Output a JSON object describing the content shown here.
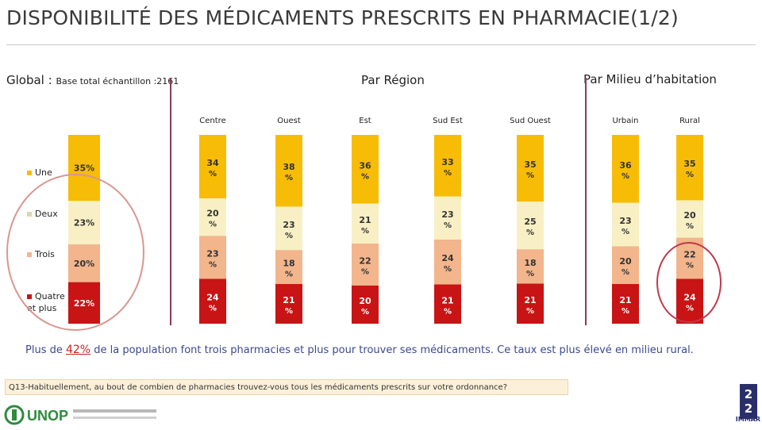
{
  "title": "DISPONIBILITÉ DES MÉDICAMENTS PRESCRITS EN PHARMACIE(1/2)",
  "global_label": "Global :",
  "global_sample": "Base total échantillon :2161",
  "header_region": "Par Région",
  "header_milieu": "Par Milieu d’habitation",
  "insight_before": "Plus de ",
  "insight_pct": "42%",
  "insight_after": " de la population font trois pharmacies et plus pour trouver ses médicaments. Ce taux est plus élevé en milieu rural.",
  "question": "Q13-Habituellement, au bout de combien de pharmacies trouvez-vous tous les médicaments prescrits sur votre ordonnance?",
  "page_number_top": "2",
  "page_number_bottom": "2",
  "logo_unop": "UNOP",
  "logo_immar": "IMMAR",
  "colors": {
    "une": "#F7BC05",
    "deux": "#F8F0C4",
    "trois": "#F2B58C",
    "quatre": "#C81414"
  },
  "chart_data": {
    "type": "bar",
    "stacked": true,
    "legend": [
      "Une",
      "Deux",
      "Trois",
      "Quatre et plus"
    ],
    "global": {
      "name": "",
      "values": [
        "35%",
        "23%",
        "20%",
        "22%"
      ]
    },
    "categories": [
      "Centre",
      "Ouest",
      "Est",
      "Sud Est",
      "Sud Ouest",
      "Urbain",
      "Rural"
    ],
    "series": [
      {
        "name": "Une",
        "values": [
          34,
          38,
          36,
          33,
          35,
          36,
          35
        ]
      },
      {
        "name": "Deux",
        "values": [
          20,
          23,
          21,
          23,
          25,
          23,
          20
        ]
      },
      {
        "name": "Trois",
        "values": [
          23,
          18,
          22,
          24,
          18,
          20,
          22
        ]
      },
      {
        "name": "Quatre et plus",
        "values": [
          24,
          21,
          20,
          21,
          21,
          21,
          24
        ]
      }
    ],
    "value_suffix": "%"
  }
}
